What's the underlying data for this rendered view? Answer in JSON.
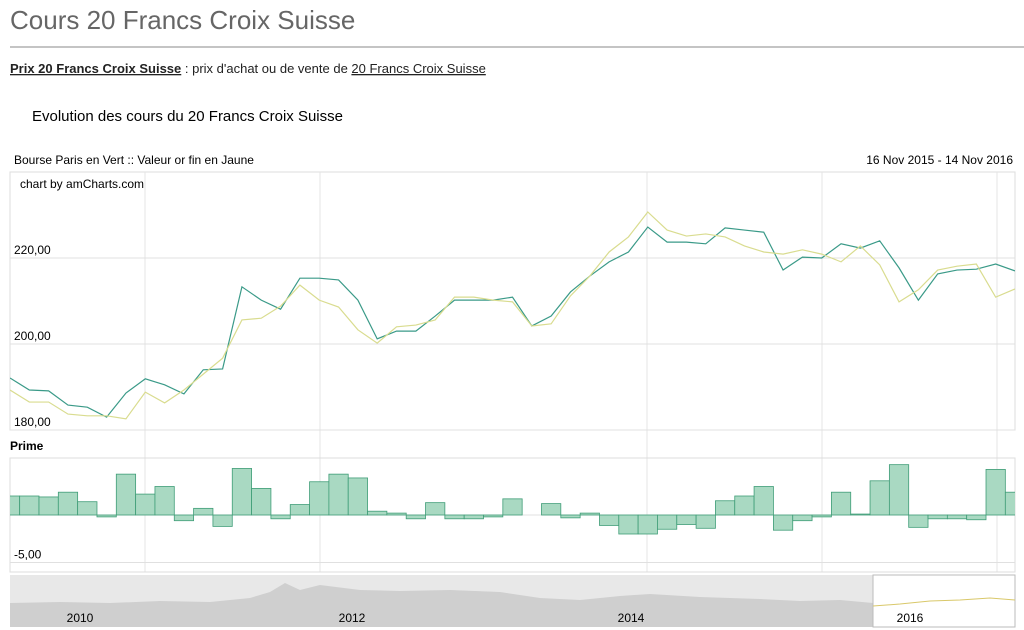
{
  "header": {
    "title": "Cours 20 Francs Croix Suisse"
  },
  "intro": {
    "link1": "Prix 20 Francs Croix Suisse",
    "text": " : prix d'achat ou de vente de ",
    "link2": "20 Francs Croix Suisse"
  },
  "chart_heading": "Evolution des cours du 20 Francs Croix Suisse",
  "chart_data": [
    {
      "type": "line",
      "title": "Bourse Paris en Vert :: Valeur or fin en Jaune",
      "date_range": "16 Nov 2015 - 14 Nov 2016",
      "credit": "chart by amCharts.com",
      "categories": [
        null,
        null,
        null,
        null,
        null,
        null,
        null,
        null,
        null,
        null,
        null,
        null,
        null,
        null,
        null,
        null,
        null,
        null,
        null,
        null,
        null,
        null,
        null,
        null,
        null,
        null,
        null,
        null,
        null,
        null,
        null,
        null,
        null,
        null,
        null,
        null,
        null,
        null,
        null,
        null,
        null,
        null,
        null,
        null,
        null,
        null,
        null,
        null,
        null,
        null,
        null,
        null,
        null
      ],
      "series": [
        {
          "color": "#3a9a88",
          "values": [
            192.1,
            189.3,
            189.1,
            185.8,
            185.3,
            183.0,
            188.6,
            191.9,
            190.5,
            188.4,
            194.0,
            194.2,
            213.3,
            210.2,
            208.1,
            215.3,
            215.3,
            214.9,
            210.2,
            201.2,
            203.0,
            203.0,
            206.5,
            210.2,
            210.2,
            210.2,
            210.9,
            204.2,
            206.5,
            212.1,
            215.8,
            219.1,
            221.4,
            227.2,
            223.7,
            223.7,
            223.3,
            227.0,
            226.5,
            226.0,
            217.2,
            220.2,
            220.0,
            223.3,
            222.3,
            224.0,
            217.7,
            210.2,
            216.3,
            217.2,
            217.4,
            218.6,
            217.0
          ]
        },
        {
          "color": "#d9dc8f",
          "values": [
            189.3,
            186.5,
            186.5,
            183.7,
            183.3,
            183.3,
            182.6,
            188.8,
            186.3,
            189.3,
            193.0,
            196.7,
            205.6,
            206.0,
            208.8,
            213.7,
            210.2,
            208.6,
            203.3,
            200.2,
            204.0,
            204.4,
            205.6,
            210.9,
            210.9,
            210.2,
            209.8,
            204.2,
            204.7,
            211.2,
            215.8,
            221.4,
            224.9,
            230.7,
            226.5,
            225.1,
            225.6,
            224.9,
            222.8,
            221.4,
            220.9,
            221.9,
            220.9,
            219.1,
            222.8,
            218.4,
            209.8,
            212.6,
            217.2,
            218.1,
            218.6,
            210.9,
            212.8
          ]
        }
      ],
      "ylim": [
        180,
        240
      ],
      "yticks": [
        {
          "value": 180,
          "label": "180,00"
        },
        {
          "value": 200,
          "label": "200,00"
        },
        {
          "value": 220,
          "label": "220,00"
        }
      ],
      "grid": true
    },
    {
      "type": "bar",
      "title": "Prime",
      "categories": [
        null,
        null,
        null,
        null,
        null,
        null,
        null,
        null,
        null,
        null,
        null,
        null,
        null,
        null,
        null,
        null,
        null,
        null,
        null,
        null,
        null,
        null,
        null,
        null,
        null,
        null,
        null,
        null,
        null,
        null,
        null,
        null,
        null,
        null,
        null,
        null,
        null,
        null,
        null,
        null,
        null,
        null,
        null,
        null,
        null,
        null,
        null,
        null,
        null,
        null,
        null,
        null,
        null
      ],
      "values": [
        2.0,
        2.0,
        1.9,
        2.4,
        1.4,
        -0.2,
        4.3,
        2.2,
        3.0,
        -0.6,
        0.7,
        -1.2,
        4.9,
        2.8,
        -0.4,
        1.1,
        3.5,
        4.3,
        3.9,
        0.4,
        0.2,
        -0.4,
        1.3,
        -0.4,
        -0.4,
        -0.2,
        1.7,
        0,
        1.2,
        -0.3,
        0.2,
        -1.1,
        -2.0,
        -2.0,
        -1.5,
        -1.0,
        -1.4,
        1.5,
        2.0,
        3.0,
        -1.6,
        -0.6,
        -0.2,
        2.4,
        0.1,
        3.6,
        5.3,
        -1.3,
        -0.4,
        -0.4,
        -0.5,
        4.8,
        2.4
      ],
      "color": "#a9d9c2",
      "ylim": [
        -6,
        6
      ],
      "yticks": [
        {
          "value": -5,
          "label": "-5,00"
        },
        0
      ],
      "grid": true
    }
  ],
  "scroller": {
    "labels": [
      "2010",
      "2012",
      "2014",
      "2016"
    ]
  }
}
